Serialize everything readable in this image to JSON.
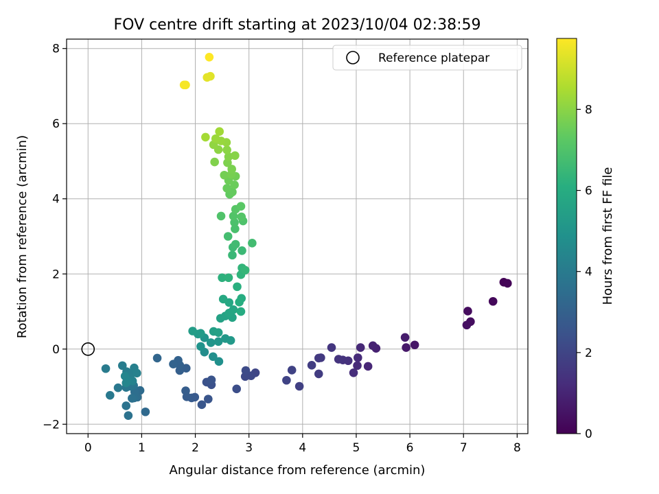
{
  "chart_data": {
    "type": "scatter",
    "title": "FOV centre drift starting at 2023/10/04 02:38:59",
    "xlabel": "Angular distance from reference (arcmin)",
    "ylabel": "Rotation from reference (arcmin)",
    "xlim": [
      -0.4,
      8.2
    ],
    "ylim": [
      -2.25,
      8.25
    ],
    "xticks": [
      0,
      1,
      2,
      3,
      4,
      5,
      6,
      7,
      8
    ],
    "yticks": [
      -2,
      0,
      2,
      4,
      6,
      8
    ],
    "grid": true,
    "legend_position": "top-right",
    "colormap": "viridis",
    "colorbar": {
      "label": "Hours from first FF file",
      "range": [
        0,
        9.75
      ],
      "ticks": [
        0,
        2,
        4,
        6,
        8
      ]
    },
    "reference": {
      "name": "Reference platepar",
      "x": 0,
      "y": 0
    },
    "points": [
      [
        7.75,
        1.78,
        0.05
      ],
      [
        7.82,
        1.75,
        0.1
      ],
      [
        7.55,
        1.27,
        0.2
      ],
      [
        7.08,
        1.01,
        0.3
      ],
      [
        7.13,
        0.73,
        0.35
      ],
      [
        7.06,
        0.64,
        0.4
      ],
      [
        6.09,
        0.11,
        0.55
      ],
      [
        5.93,
        0.04,
        0.65
      ],
      [
        5.91,
        0.31,
        0.75
      ],
      [
        5.37,
        0.02,
        0.9
      ],
      [
        5.31,
        0.09,
        0.95
      ],
      [
        5.22,
        -0.46,
        1.05
      ],
      [
        5.08,
        0.04,
        1.1
      ],
      [
        5.02,
        -0.44,
        1.15
      ],
      [
        5.03,
        -0.23,
        1.2
      ],
      [
        4.95,
        -0.63,
        1.25
      ],
      [
        4.85,
        -0.31,
        1.35
      ],
      [
        4.75,
        -0.29,
        1.4
      ],
      [
        4.67,
        -0.27,
        1.45
      ],
      [
        4.54,
        0.04,
        1.5
      ],
      [
        4.34,
        -0.23,
        1.6
      ],
      [
        4.3,
        -0.24,
        1.65
      ],
      [
        4.3,
        -0.66,
        1.7
      ],
      [
        4.17,
        -0.43,
        1.75
      ],
      [
        3.94,
        -0.99,
        1.85
      ],
      [
        3.8,
        -0.56,
        1.9
      ],
      [
        3.7,
        -0.83,
        1.95
      ],
      [
        3.12,
        -0.63,
        2.05
      ],
      [
        3.04,
        -0.71,
        2.1
      ],
      [
        2.93,
        -0.73,
        2.15
      ],
      [
        2.94,
        -0.57,
        2.2
      ],
      [
        2.77,
        -1.06,
        2.3
      ],
      [
        2.3,
        -0.95,
        2.4
      ],
      [
        2.21,
        -0.88,
        2.45
      ],
      [
        2.3,
        -0.82,
        2.5
      ],
      [
        2.24,
        -1.33,
        2.55
      ],
      [
        2.12,
        -1.48,
        2.6
      ],
      [
        1.99,
        -1.28,
        2.7
      ],
      [
        1.93,
        -1.3,
        2.75
      ],
      [
        1.84,
        -1.27,
        2.8
      ],
      [
        1.82,
        -1.11,
        2.85
      ],
      [
        1.83,
        -0.51,
        2.9
      ],
      [
        1.71,
        -0.57,
        2.95
      ],
      [
        1.71,
        -0.43,
        3.0
      ],
      [
        1.68,
        -0.3,
        3.05
      ],
      [
        1.59,
        -0.4,
        3.1
      ],
      [
        1.29,
        -0.24,
        3.2
      ],
      [
        1.07,
        -1.67,
        3.3
      ],
      [
        0.97,
        -1.1,
        3.4
      ],
      [
        0.92,
        -1.28,
        3.45
      ],
      [
        0.87,
        -1.14,
        3.5
      ],
      [
        0.86,
        -1.3,
        3.55
      ],
      [
        0.82,
        -1.31,
        3.6
      ],
      [
        0.75,
        -1.77,
        3.65
      ],
      [
        0.71,
        -1.51,
        3.7
      ],
      [
        0.85,
        -0.97,
        3.75
      ],
      [
        0.79,
        -0.99,
        3.8
      ],
      [
        0.71,
        -1.02,
        3.85
      ],
      [
        0.56,
        -1.03,
        3.9
      ],
      [
        0.41,
        -1.23,
        3.95
      ],
      [
        0.33,
        -0.52,
        4.0
      ],
      [
        0.64,
        -0.44,
        4.05
      ],
      [
        0.72,
        -0.6,
        4.1
      ],
      [
        0.8,
        -0.67,
        4.15
      ],
      [
        0.86,
        -0.5,
        4.2
      ],
      [
        0.91,
        -0.64,
        4.25
      ],
      [
        0.83,
        -0.85,
        4.3
      ],
      [
        0.73,
        -0.82,
        4.35
      ],
      [
        0.69,
        -0.72,
        4.4
      ],
      [
        0.71,
        -0.9,
        4.45
      ],
      [
        2.17,
        -0.08,
        4.7
      ],
      [
        2.33,
        -0.2,
        4.8
      ],
      [
        2.44,
        -0.33,
        4.85
      ],
      [
        2.1,
        0.07,
        4.95
      ],
      [
        2.17,
        0.3,
        5.0
      ],
      [
        2.29,
        0.17,
        5.05
      ],
      [
        2.43,
        0.2,
        5.1
      ],
      [
        2.56,
        0.28,
        5.15
      ],
      [
        2.66,
        0.23,
        5.2
      ],
      [
        2.05,
        0.4,
        5.25
      ],
      [
        2.1,
        0.42,
        5.3
      ],
      [
        1.95,
        0.48,
        5.35
      ],
      [
        2.34,
        0.47,
        5.45
      ],
      [
        2.43,
        0.44,
        5.5
      ],
      [
        2.47,
        0.82,
        5.55
      ],
      [
        2.56,
        0.88,
        5.6
      ],
      [
        2.69,
        0.84,
        5.65
      ],
      [
        2.63,
        0.96,
        5.7
      ],
      [
        2.71,
        1.05,
        5.75
      ],
      [
        2.63,
        1.24,
        5.8
      ],
      [
        2.52,
        1.33,
        5.85
      ],
      [
        2.85,
        1.0,
        5.95
      ],
      [
        2.86,
        1.35,
        6.0
      ],
      [
        2.82,
        1.25,
        6.05
      ],
      [
        2.78,
        1.66,
        6.15
      ],
      [
        2.5,
        1.9,
        6.2
      ],
      [
        2.62,
        1.9,
        6.25
      ],
      [
        2.85,
        1.98,
        6.3
      ],
      [
        2.87,
        2.16,
        6.35
      ],
      [
        2.93,
        2.1,
        6.4
      ],
      [
        2.69,
        2.5,
        6.5
      ],
      [
        2.87,
        2.62,
        6.55
      ],
      [
        2.7,
        2.71,
        6.6
      ],
      [
        2.75,
        2.79,
        6.65
      ],
      [
        3.06,
        2.82,
        6.7
      ],
      [
        2.61,
        3.0,
        6.75
      ],
      [
        2.74,
        3.2,
        6.85
      ],
      [
        2.73,
        3.37,
        6.9
      ],
      [
        2.89,
        3.41,
        6.95
      ],
      [
        2.48,
        3.54,
        7.0
      ],
      [
        2.71,
        3.54,
        7.05
      ],
      [
        2.86,
        3.52,
        7.1
      ],
      [
        2.75,
        3.72,
        7.15
      ],
      [
        2.85,
        3.8,
        7.2
      ],
      [
        2.64,
        4.12,
        7.35
      ],
      [
        2.69,
        4.18,
        7.4
      ],
      [
        2.59,
        4.28,
        7.45
      ],
      [
        2.73,
        4.37,
        7.5
      ],
      [
        2.62,
        4.49,
        7.55
      ],
      [
        2.75,
        4.6,
        7.6
      ],
      [
        2.54,
        4.63,
        7.65
      ],
      [
        2.67,
        4.65,
        7.7
      ],
      [
        2.68,
        4.79,
        7.75
      ],
      [
        2.6,
        4.96,
        7.8
      ],
      [
        2.36,
        4.98,
        7.85
      ],
      [
        2.62,
        5.12,
        7.9
      ],
      [
        2.74,
        5.15,
        7.95
      ],
      [
        2.59,
        5.3,
        8.0
      ],
      [
        2.43,
        5.31,
        8.05
      ],
      [
        2.34,
        5.44,
        8.1
      ],
      [
        2.58,
        5.5,
        8.15
      ],
      [
        2.48,
        5.54,
        8.2
      ],
      [
        2.38,
        5.6,
        8.25
      ],
      [
        2.45,
        5.79,
        8.35
      ],
      [
        2.19,
        5.64,
        8.4
      ],
      [
        2.28,
        7.26,
        9.3
      ],
      [
        2.22,
        7.23,
        9.35
      ],
      [
        1.82,
        7.03,
        9.6
      ],
      [
        1.79,
        7.03,
        9.65
      ],
      [
        2.26,
        7.77,
        9.75
      ]
    ]
  }
}
